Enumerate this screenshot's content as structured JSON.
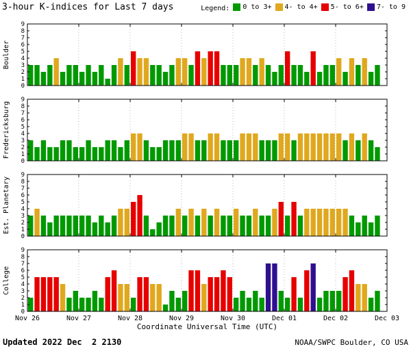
{
  "title": "3-hour K-indices for Last 7 days",
  "legend": {
    "label": "Legend:",
    "items": [
      {
        "label": "0 to 3+",
        "color": "#009900"
      },
      {
        "label": "4- to 4+",
        "color": "#e0a81e"
      },
      {
        "label": "5- to 6+",
        "color": "#e60000"
      },
      {
        "label": "7- to 9",
        "color": "#2f0f8f"
      }
    ]
  },
  "footer": {
    "updated": "Updated 2022 Dec  2 2130",
    "source": "NOAA/SWPC Boulder, CO USA"
  },
  "chart_data": {
    "type": "bar",
    "title": "3-hour K-indices for Last 7 days",
    "xlabel": "Coordinate Universal Time (UTC)",
    "x_tick_labels": [
      "Nov 26",
      "Nov 27",
      "Nov 28",
      "Nov 29",
      "Nov 30",
      "Dec 01",
      "Dec 02",
      "Dec 03"
    ],
    "ylim": [
      0,
      9
    ],
    "y_ticks": [
      0,
      1,
      2,
      3,
      4,
      5,
      6,
      7,
      8,
      9
    ],
    "days": 7,
    "bars_per_day": 8,
    "grid": "dashed vertical lines at day boundaries",
    "legend_position": "top-right",
    "color_scale": [
      {
        "min": 0,
        "max": 3,
        "color": "#009900",
        "label": "0 to 3+"
      },
      {
        "min": 4,
        "max": 4,
        "color": "#e0a81e",
        "label": "4- to 4+"
      },
      {
        "min": 5,
        "max": 6,
        "color": "#e60000",
        "label": "5- to 6+"
      },
      {
        "min": 7,
        "max": 9,
        "color": "#2f0f8f",
        "label": "7- to 9"
      }
    ],
    "series": [
      {
        "name": "Boulder",
        "values": [
          3,
          3,
          2,
          3,
          4,
          2,
          3,
          3,
          2,
          3,
          2,
          3,
          1,
          3,
          4,
          3,
          5,
          4,
          4,
          3,
          3,
          2,
          3,
          4,
          4,
          3,
          5,
          4,
          5,
          5,
          3,
          3,
          3,
          4,
          4,
          3,
          4,
          3,
          2,
          3,
          5,
          3,
          3,
          2,
          5,
          2,
          3,
          3,
          4,
          2,
          4,
          3,
          4,
          2,
          3
        ]
      },
      {
        "name": "Fredericksburg",
        "values": [
          3,
          2,
          3,
          2,
          2,
          3,
          3,
          2,
          2,
          3,
          2,
          2,
          3,
          3,
          2,
          3,
          4,
          4,
          3,
          2,
          2,
          3,
          3,
          3,
          4,
          4,
          3,
          3,
          4,
          4,
          3,
          3,
          3,
          4,
          4,
          4,
          3,
          3,
          3,
          4,
          4,
          3,
          4,
          4,
          4,
          4,
          4,
          4,
          4,
          3,
          4,
          3,
          4,
          3,
          2
        ]
      },
      {
        "name": "Est. Planetary",
        "values": [
          3,
          4,
          3,
          2,
          3,
          3,
          3,
          3,
          3,
          3,
          2,
          3,
          2,
          3,
          4,
          4,
          5,
          6,
          3,
          1,
          2,
          3,
          3,
          4,
          3,
          4,
          3,
          4,
          3,
          4,
          3,
          3,
          4,
          3,
          3,
          4,
          3,
          3,
          4,
          5,
          3,
          5,
          3,
          4,
          4,
          4,
          4,
          4,
          4,
          4,
          3,
          2,
          3,
          2,
          3
        ]
      },
      {
        "name": "College",
        "values": [
          2,
          5,
          5,
          5,
          5,
          4,
          2,
          3,
          2,
          2,
          3,
          2,
          5,
          6,
          4,
          4,
          2,
          5,
          5,
          4,
          4,
          1,
          3,
          2,
          3,
          6,
          6,
          4,
          5,
          5,
          6,
          5,
          2,
          3,
          2,
          3,
          2,
          7,
          7,
          3,
          2,
          5,
          2,
          6,
          7,
          2,
          3,
          3,
          3,
          5,
          6,
          4,
          4,
          2,
          3
        ]
      }
    ]
  }
}
